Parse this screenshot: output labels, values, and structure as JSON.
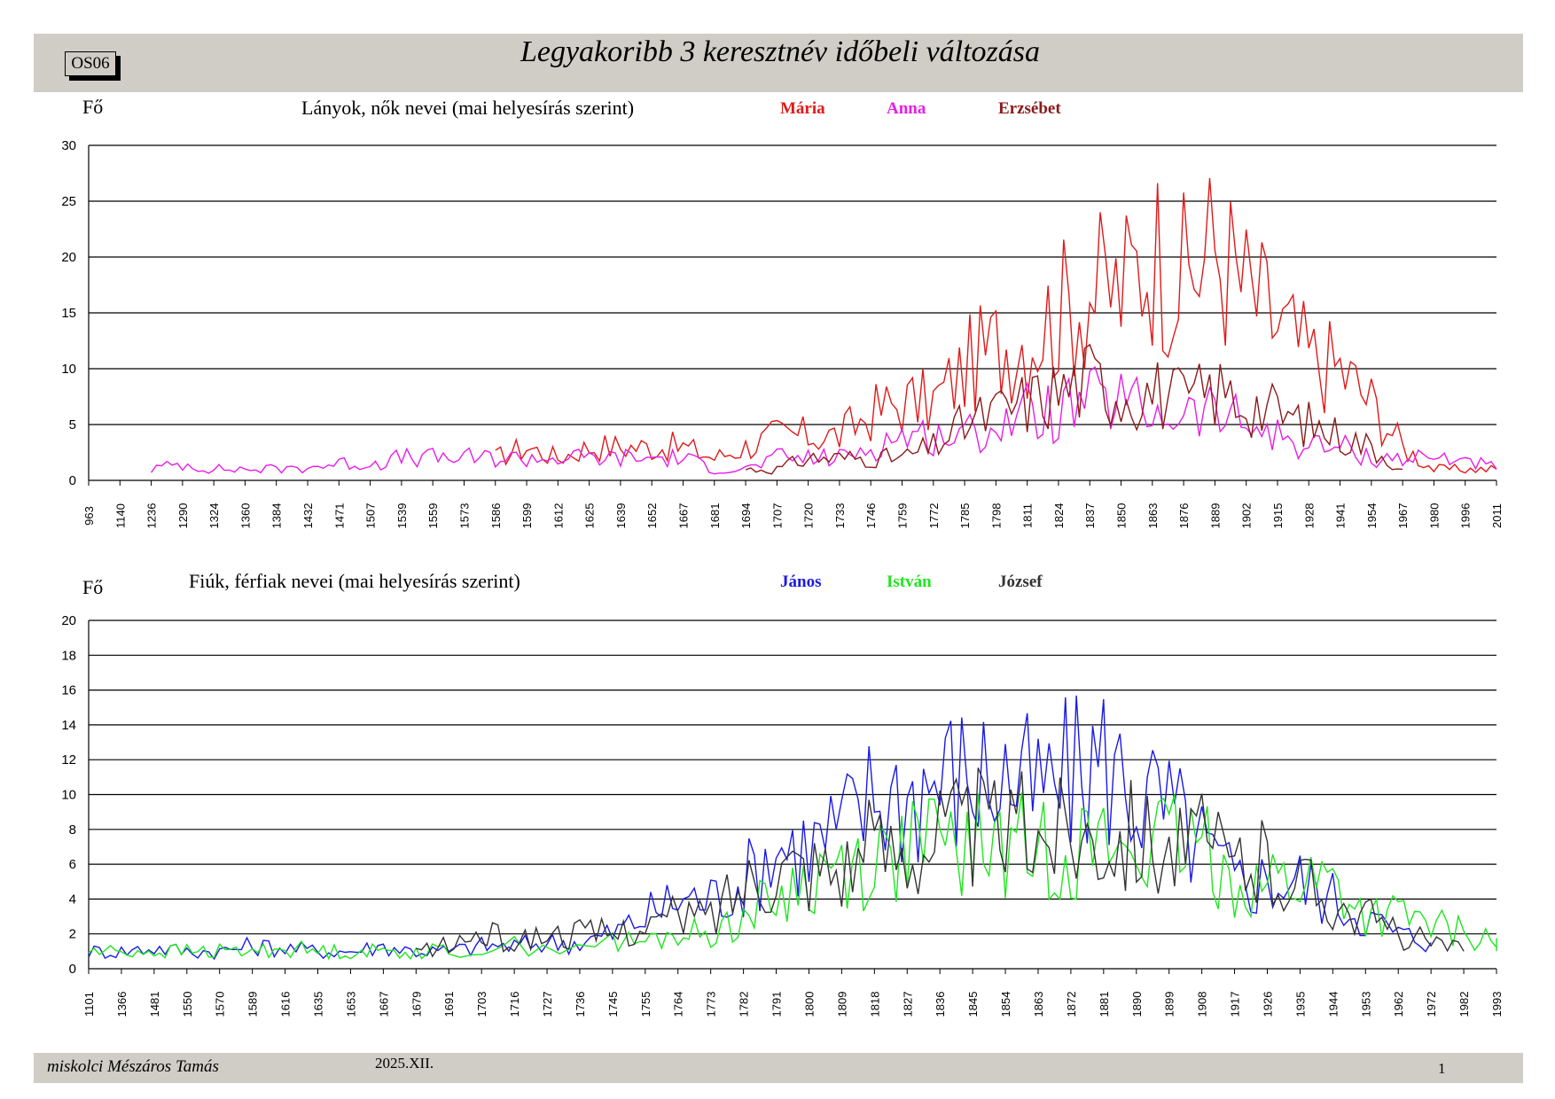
{
  "page": {
    "code": "OS06",
    "title": "Legyakoribb 3 keresztnév időbeli változása",
    "author": "miskolci Mészáros Tamás",
    "date": "2025.XII.",
    "page_number": "1"
  },
  "chart_data": [
    {
      "type": "line",
      "title": "Lányok, nők nevei (mai helyesírás szerint)",
      "ylabel": "Fő",
      "ylim": [
        0,
        30
      ],
      "yticks": [
        0,
        5,
        10,
        15,
        20,
        25,
        30
      ],
      "grid": true,
      "legend_position": "top",
      "x_range": [
        963,
        2011
      ],
      "xtick_labels": [
        "963",
        "1140",
        "1236",
        "1290",
        "1324",
        "1360",
        "1384",
        "1432",
        "1471",
        "1507",
        "1539",
        "1559",
        "1573",
        "1586",
        "1599",
        "1612",
        "1625",
        "1639",
        "1652",
        "1667",
        "1681",
        "1694",
        "1707",
        "1720",
        "1733",
        "1746",
        "1759",
        "1772",
        "1785",
        "1798",
        "1811",
        "1824",
        "1837",
        "1850",
        "1863",
        "1876",
        "1889",
        "1902",
        "1915",
        "1928",
        "1941",
        "1954",
        "1967",
        "1980",
        "1996",
        "2011"
      ],
      "series": [
        {
          "name": "Mária",
          "color": "#e01a1a",
          "points": [
            [
              1586,
              2
            ],
            [
              1599,
              3
            ],
            [
              1612,
              2
            ],
            [
              1625,
              3
            ],
            [
              1639,
              3
            ],
            [
              1652,
              3
            ],
            [
              1667,
              3
            ],
            [
              1681,
              2
            ],
            [
              1694,
              3
            ],
            [
              1707,
              4
            ],
            [
              1720,
              4
            ],
            [
              1733,
              4
            ],
            [
              1746,
              6
            ],
            [
              1759,
              7
            ],
            [
              1772,
              7
            ],
            [
              1785,
              10
            ],
            [
              1798,
              12
            ],
            [
              1811,
              13
            ],
            [
              1824,
              15
            ],
            [
              1837,
              17
            ],
            [
              1850,
              17
            ],
            [
              1863,
              21
            ],
            [
              1876,
              18
            ],
            [
              1889,
              21
            ],
            [
              1902,
              17
            ],
            [
              1915,
              14
            ],
            [
              1928,
              11
            ],
            [
              1941,
              10
            ],
            [
              1954,
              7
            ],
            [
              1967,
              3
            ],
            [
              1980,
              1
            ],
            [
              1996,
              1
            ],
            [
              2011,
              1
            ]
          ]
        },
        {
          "name": "Anna",
          "color": "#e61ee6",
          "points": [
            [
              1236,
              1
            ],
            [
              1290,
              1.5
            ],
            [
              1324,
              1
            ],
            [
              1360,
              1
            ],
            [
              1384,
              1
            ],
            [
              1432,
              1.2
            ],
            [
              1471,
              1.5
            ],
            [
              1507,
              1.5
            ],
            [
              1539,
              2
            ],
            [
              1559,
              2
            ],
            [
              1573,
              2
            ],
            [
              1586,
              2
            ],
            [
              1599,
              2
            ],
            [
              1612,
              2
            ],
            [
              1625,
              2
            ],
            [
              1639,
              2
            ],
            [
              1652,
              2
            ],
            [
              1667,
              2
            ],
            [
              1681,
              1
            ],
            [
              1694,
              1
            ],
            [
              1707,
              2
            ],
            [
              1720,
              2
            ],
            [
              1733,
              2
            ],
            [
              1746,
              3
            ],
            [
              1759,
              4
            ],
            [
              1772,
              4
            ],
            [
              1785,
              4
            ],
            [
              1798,
              5
            ],
            [
              1811,
              6
            ],
            [
              1824,
              6
            ],
            [
              1837,
              7
            ],
            [
              1850,
              7
            ],
            [
              1863,
              6
            ],
            [
              1876,
              6
            ],
            [
              1889,
              6
            ],
            [
              1902,
              5
            ],
            [
              1915,
              4
            ],
            [
              1928,
              3
            ],
            [
              1941,
              3
            ],
            [
              1954,
              2
            ],
            [
              1967,
              2
            ],
            [
              1980,
              2
            ],
            [
              1996,
              2
            ],
            [
              2011,
              1
            ]
          ]
        },
        {
          "name": "Erzsébet",
          "color": "#8b1a1a",
          "points": [
            [
              1694,
              1
            ],
            [
              1707,
              1
            ],
            [
              1720,
              2
            ],
            [
              1733,
              2
            ],
            [
              1746,
              2
            ],
            [
              1759,
              2
            ],
            [
              1772,
              3
            ],
            [
              1785,
              5
            ],
            [
              1798,
              6
            ],
            [
              1811,
              7
            ],
            [
              1824,
              8
            ],
            [
              1837,
              9
            ],
            [
              1850,
              8
            ],
            [
              1863,
              8
            ],
            [
              1876,
              7
            ],
            [
              1889,
              8
            ],
            [
              1902,
              7
            ],
            [
              1915,
              6
            ],
            [
              1928,
              5
            ],
            [
              1941,
              4
            ],
            [
              1954,
              3
            ],
            [
              1967,
              1
            ]
          ]
        }
      ]
    },
    {
      "type": "line",
      "title": "Fiúk, férfiak nevei (mai helyesírás szerint)",
      "ylabel": "Fő",
      "ylim": [
        0,
        20
      ],
      "yticks": [
        0,
        2,
        4,
        6,
        8,
        10,
        12,
        14,
        16,
        18,
        20
      ],
      "grid": true,
      "legend_position": "top",
      "x_range": [
        1101,
        1999
      ],
      "xtick_labels": [
        "1101",
        "1366",
        "1481",
        "1550",
        "1570",
        "1589",
        "1616",
        "1635",
        "1653",
        "1667",
        "1679",
        "1691",
        "1703",
        "1716",
        "1727",
        "1736",
        "1745",
        "1755",
        "1764",
        "1773",
        "1782",
        "1791",
        "1800",
        "1809",
        "1818",
        "1827",
        "1836",
        "1845",
        "1854",
        "1863",
        "1872",
        "1881",
        "1890",
        "1899",
        "1908",
        "1917",
        "1926",
        "1935",
        "1944",
        "1953",
        "1962",
        "1972",
        "1982",
        "1993"
      ],
      "series": [
        {
          "name": "János",
          "color": "#1a1ae6",
          "points": [
            [
              1101,
              1
            ],
            [
              1366,
              1
            ],
            [
              1481,
              1.2
            ],
            [
              1550,
              1
            ],
            [
              1570,
              1
            ],
            [
              1589,
              1.3
            ],
            [
              1616,
              1.2
            ],
            [
              1635,
              1
            ],
            [
              1653,
              1
            ],
            [
              1667,
              1.3
            ],
            [
              1679,
              1
            ],
            [
              1691,
              1
            ],
            [
              1703,
              1.3
            ],
            [
              1716,
              1.3
            ],
            [
              1727,
              1.5
            ],
            [
              1736,
              1.5
            ],
            [
              1745,
              2
            ],
            [
              1755,
              3
            ],
            [
              1764,
              4
            ],
            [
              1773,
              4
            ],
            [
              1782,
              5
            ],
            [
              1791,
              7
            ],
            [
              1800,
              7
            ],
            [
              1809,
              8
            ],
            [
              1818,
              10
            ],
            [
              1827,
              10
            ],
            [
              1836,
              11
            ],
            [
              1845,
              11
            ],
            [
              1854,
              11
            ],
            [
              1863,
              10
            ],
            [
              1872,
              11
            ],
            [
              1881,
              12
            ],
            [
              1890,
              10
            ],
            [
              1899,
              9
            ],
            [
              1908,
              7
            ],
            [
              1917,
              5
            ],
            [
              1926,
              5
            ],
            [
              1935,
              5
            ],
            [
              1944,
              4
            ],
            [
              1953,
              3
            ],
            [
              1962,
              2
            ],
            [
              1972,
              1.5
            ]
          ]
        },
        {
          "name": "István",
          "color": "#1ee61e",
          "points": [
            [
              1101,
              1
            ],
            [
              1366,
              1
            ],
            [
              1481,
              1
            ],
            [
              1550,
              1
            ],
            [
              1570,
              1
            ],
            [
              1589,
              1
            ],
            [
              1616,
              1.2
            ],
            [
              1635,
              1
            ],
            [
              1653,
              1
            ],
            [
              1667,
              1
            ],
            [
              1679,
              1
            ],
            [
              1691,
              1
            ],
            [
              1716,
              1.3
            ],
            [
              1745,
              1.5
            ],
            [
              1755,
              1.5
            ],
            [
              1764,
              2
            ],
            [
              1773,
              2
            ],
            [
              1782,
              3
            ],
            [
              1791,
              4
            ],
            [
              1800,
              5
            ],
            [
              1809,
              6
            ],
            [
              1818,
              6
            ],
            [
              1827,
              7
            ],
            [
              1836,
              7
            ],
            [
              1845,
              7
            ],
            [
              1854,
              7
            ],
            [
              1863,
              7
            ],
            [
              1872,
              7
            ],
            [
              1881,
              7
            ],
            [
              1890,
              7
            ],
            [
              1899,
              7
            ],
            [
              1908,
              7
            ],
            [
              1917,
              5
            ],
            [
              1926,
              5
            ],
            [
              1935,
              5
            ],
            [
              1944,
              5
            ],
            [
              1953,
              3
            ],
            [
              1962,
              3
            ],
            [
              1972,
              2.5
            ],
            [
              1982,
              2
            ],
            [
              1993,
              1.5
            ],
            [
              1999,
              1
            ]
          ]
        },
        {
          "name": "József",
          "color": "#333333",
          "points": [
            [
              1679,
              1
            ],
            [
              1691,
              1.3
            ],
            [
              1703,
              2
            ],
            [
              1716,
              1.5
            ],
            [
              1727,
              2
            ],
            [
              1736,
              2
            ],
            [
              1745,
              2
            ],
            [
              1755,
              2.5
            ],
            [
              1764,
              3
            ],
            [
              1773,
              3
            ],
            [
              1782,
              5
            ],
            [
              1791,
              6
            ],
            [
              1800,
              6
            ],
            [
              1809,
              6
            ],
            [
              1818,
              7
            ],
            [
              1827,
              7
            ],
            [
              1836,
              8
            ],
            [
              1845,
              8
            ],
            [
              1854,
              8
            ],
            [
              1863,
              8
            ],
            [
              1872,
              8
            ],
            [
              1881,
              8
            ],
            [
              1890,
              8
            ],
            [
              1899,
              7
            ],
            [
              1908,
              7
            ],
            [
              1917,
              6
            ],
            [
              1926,
              6
            ],
            [
              1935,
              5
            ],
            [
              1944,
              4
            ],
            [
              1953,
              3
            ],
            [
              1962,
              2
            ],
            [
              1972,
              1.5
            ],
            [
              1982,
              1
            ]
          ]
        }
      ]
    }
  ]
}
